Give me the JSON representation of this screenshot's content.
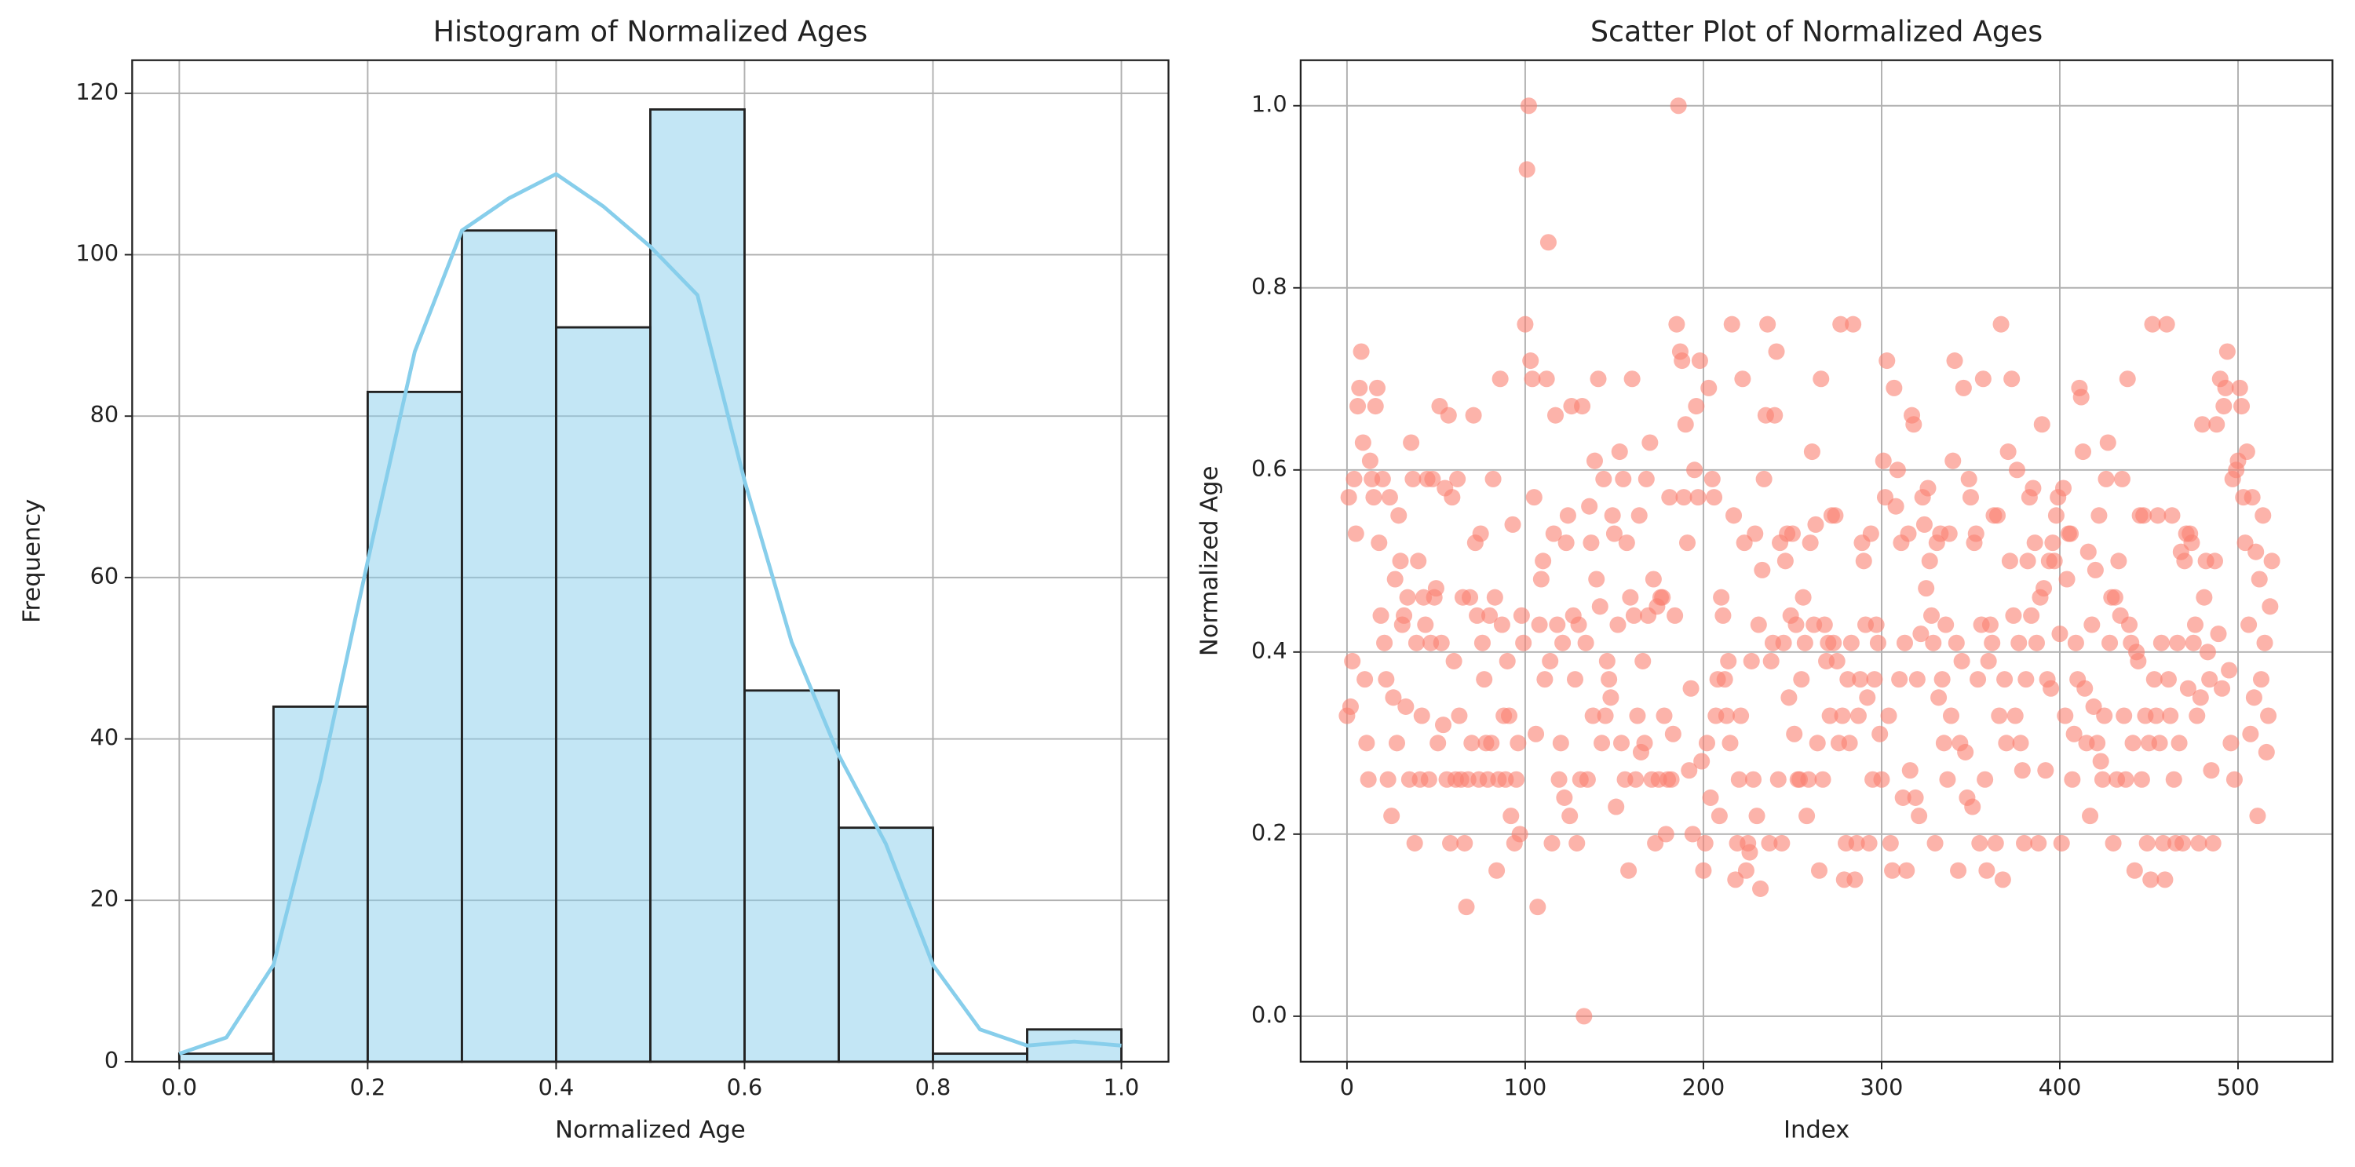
{
  "chart_data": [
    {
      "type": "histogram",
      "title": "Histogram of Normalized Ages",
      "xlabel": "Normalized Age",
      "ylabel": "Frequency",
      "bins": [
        0.0,
        0.1,
        0.2,
        0.3,
        0.4,
        0.5,
        0.6,
        0.7,
        0.8,
        0.9,
        1.0
      ],
      "values": [
        1,
        44,
        83,
        103,
        91,
        118,
        46,
        29,
        1,
        4
      ],
      "color": "#87ceeb",
      "edgecolor": "#222222",
      "kde": {
        "x": [
          0,
          0.05,
          0.1,
          0.15,
          0.2,
          0.25,
          0.3,
          0.35,
          0.4,
          0.45,
          0.5,
          0.55,
          0.6,
          0.65,
          0.7,
          0.75,
          0.8,
          0.85,
          0.9,
          0.95,
          1.0
        ],
        "values": [
          1,
          3,
          12,
          35,
          62,
          88,
          103,
          107,
          110,
          106,
          101,
          95,
          72,
          52,
          38,
          27,
          12,
          4,
          2,
          2.5,
          2
        ]
      },
      "xlim": [
        -0.05,
        1.05
      ],
      "xticks": [
        {
          "value": 0,
          "label": "0.0"
        },
        0.2,
        0.4,
        0.6,
        0.8,
        {
          "value": 1,
          "label": "1.0"
        }
      ],
      "ylim": [
        0,
        124.1
      ],
      "yticks": [
        0,
        20,
        40,
        60,
        80,
        100,
        120
      ],
      "grid": true
    },
    {
      "type": "scatter",
      "title": "Scatter Plot of Normalized Ages",
      "xlabel": "Index",
      "ylabel": "Normalized Age",
      "color": "#fa8072",
      "x": [
        0,
        1,
        2,
        3,
        4,
        5,
        6,
        7,
        8,
        9,
        10,
        11,
        12,
        13,
        14,
        15,
        16,
        17,
        18,
        19,
        20,
        21,
        22,
        23,
        24,
        25,
        26,
        27,
        28,
        29,
        30,
        31,
        32,
        33,
        34,
        35,
        36,
        37,
        38,
        39,
        40,
        41,
        42,
        43,
        44,
        45,
        46,
        47,
        48,
        49,
        50,
        51,
        52,
        53,
        54,
        55,
        56,
        57,
        58,
        59,
        60,
        61,
        62,
        63,
        64,
        65,
        66,
        67,
        68,
        69,
        70,
        71,
        72,
        73,
        74,
        75,
        76,
        77,
        78,
        79,
        80,
        81,
        82,
        83,
        84,
        85,
        86,
        87,
        88,
        89,
        90,
        91,
        92,
        93,
        94,
        95,
        96,
        97,
        98,
        99,
        100,
        101,
        102,
        103,
        104,
        105,
        106,
        107,
        108,
        109,
        110,
        111,
        112,
        113,
        114,
        115,
        116,
        117,
        118,
        119,
        120,
        121,
        122,
        123,
        124,
        125,
        126,
        127,
        128,
        129,
        130,
        131,
        132,
        133,
        134,
        135,
        136,
        137,
        138,
        139,
        140,
        141,
        142,
        143,
        144,
        145,
        146,
        147,
        148,
        149,
        150,
        151,
        152,
        153,
        154,
        155,
        156,
        157,
        158,
        159,
        160,
        161,
        162,
        163,
        164,
        165,
        166,
        167,
        168,
        169,
        170,
        171,
        172,
        173,
        174,
        175,
        176,
        177,
        178,
        179,
        180,
        181,
        182,
        183,
        184,
        185,
        186,
        187,
        188,
        189,
        190,
        191,
        192,
        193,
        194,
        195,
        196,
        197,
        198,
        199,
        200,
        201,
        202,
        203,
        204,
        205,
        206,
        207,
        208,
        209,
        210,
        211,
        212,
        213,
        214,
        215,
        216,
        217,
        218,
        219,
        220,
        221,
        222,
        223,
        224,
        225,
        226,
        227,
        228,
        229,
        230,
        231,
        232,
        233,
        234,
        235,
        236,
        237,
        238,
        239,
        240,
        241,
        242,
        243,
        244,
        245,
        246,
        247,
        248,
        249,
        250,
        251,
        252,
        253,
        254,
        255,
        256,
        257,
        258,
        259,
        260,
        261,
        262,
        263,
        264,
        265,
        266,
        267,
        268,
        269,
        270,
        271,
        272,
        273,
        274,
        275,
        276,
        277,
        278,
        279,
        280,
        281,
        282,
        283,
        284,
        285,
        286,
        287,
        288,
        289,
        290,
        291,
        292,
        293,
        294,
        295,
        296,
        297,
        298,
        299,
        300,
        301,
        302,
        303,
        304,
        305,
        306,
        307,
        308,
        309,
        310,
        311,
        312,
        313,
        314,
        315,
        316,
        317,
        318,
        319,
        320,
        321,
        322,
        323,
        324,
        325,
        326,
        327,
        328,
        329,
        330,
        331,
        332,
        333,
        334,
        335,
        336,
        337,
        338,
        339,
        340,
        341,
        342,
        343,
        344,
        345,
        346,
        347,
        348,
        349,
        350,
        351,
        352,
        353,
        354,
        355,
        356,
        357,
        358,
        359,
        360,
        361,
        362,
        363,
        364,
        365,
        366,
        367,
        368,
        369,
        370,
        371,
        372,
        373,
        374,
        375,
        376,
        377,
        378,
        379,
        380,
        381,
        382,
        383,
        384,
        385,
        386,
        387,
        388,
        389,
        390,
        391,
        392,
        393,
        394,
        395,
        396,
        397,
        398,
        399,
        400,
        401,
        402,
        403,
        404,
        405,
        406,
        407,
        408,
        409,
        410,
        411,
        412,
        413,
        414,
        415,
        416,
        417,
        418,
        419,
        420,
        421,
        422,
        423,
        424,
        425,
        426,
        427,
        428,
        429,
        430,
        431,
        432,
        433,
        434,
        435,
        436,
        437,
        438,
        439,
        440,
        441,
        442,
        443,
        444,
        445,
        446,
        447,
        448,
        449,
        450,
        451,
        452,
        453,
        454,
        455,
        456,
        457,
        458,
        459,
        460,
        461,
        462,
        463,
        464,
        465,
        466,
        467,
        468,
        469,
        470,
        471,
        472,
        473,
        474,
        475,
        476,
        477,
        478,
        479,
        480,
        481,
        482,
        483,
        484,
        485,
        486,
        487,
        488,
        489,
        490,
        491,
        492,
        493,
        494,
        495,
        496,
        497,
        498,
        499,
        500,
        501,
        502,
        503,
        504,
        505,
        506,
        507,
        508,
        509,
        510,
        511,
        512,
        513,
        514,
        515,
        516,
        517,
        518,
        519
      ],
      "values": [
        0.33,
        0.57,
        0.34,
        0.39,
        0.59,
        0.53,
        0.67,
        0.69,
        0.73,
        0.63,
        0.37,
        0.3,
        0.26,
        0.61,
        0.59,
        0.57,
        0.67,
        0.69,
        0.52,
        0.44,
        0.59,
        0.41,
        0.37,
        0.26,
        0.57,
        0.22,
        0.35,
        0.48,
        0.3,
        0.55,
        0.5,
        0.43,
        0.44,
        0.34,
        0.46,
        0.26,
        0.63,
        0.59,
        0.19,
        0.41,
        0.5,
        0.26,
        0.33,
        0.46,
        0.43,
        0.59,
        0.26,
        0.41,
        0.59,
        0.46,
        0.47,
        0.3,
        0.67,
        0.41,
        0.32,
        0.58,
        0.26,
        0.66,
        0.19,
        0.57,
        0.39,
        0.26,
        0.59,
        0.33,
        0.26,
        0.46,
        0.19,
        0.12,
        0.26,
        0.46,
        0.3,
        0.66,
        0.52,
        0.44,
        0.26,
        0.53,
        0.41,
        0.37,
        0.3,
        0.26,
        0.44,
        0.3,
        0.59,
        0.46,
        0.16,
        0.26,
        0.7,
        0.43,
        0.33,
        0.26,
        0.39,
        0.33,
        0.22,
        0.54,
        0.19,
        0.26,
        0.3,
        0.2,
        0.44,
        0.41,
        0.76,
        0.93,
        1.0,
        0.72,
        0.7,
        0.57,
        0.31,
        0.12,
        0.43,
        0.48,
        0.5,
        0.37,
        0.7,
        0.85,
        0.39,
        0.19,
        0.53,
        0.66,
        0.43,
        0.26,
        0.3,
        0.41,
        0.24,
        0.52,
        0.55,
        0.22,
        0.67,
        0.44,
        0.37,
        0.19,
        0.43,
        0.26,
        0.67,
        0.0,
        0.41,
        0.26,
        0.56,
        0.52,
        0.33,
        0.61,
        0.48,
        0.7,
        0.45,
        0.3,
        0.59,
        0.33,
        0.39,
        0.37,
        0.35,
        0.55,
        0.53,
        0.23,
        0.43,
        0.62,
        0.3,
        0.59,
        0.26,
        0.52,
        0.16,
        0.46,
        0.7,
        0.44,
        0.26,
        0.33,
        0.55,
        0.29,
        0.39,
        0.3,
        0.59,
        0.44,
        0.63,
        0.26,
        0.48,
        0.19,
        0.45,
        0.26,
        0.46,
        0.46,
        0.33,
        0.2,
        0.26,
        0.57,
        0.26,
        0.31,
        0.44,
        0.76,
        1.0,
        0.73,
        0.72,
        0.57,
        0.65,
        0.52,
        0.27,
        0.36,
        0.2,
        0.6,
        0.67,
        0.57,
        0.72,
        0.28,
        0.16,
        0.19,
        0.3,
        0.69,
        0.24,
        0.59,
        0.57,
        0.33,
        0.37,
        0.22,
        0.46,
        0.44,
        0.37,
        0.33,
        0.39,
        0.3,
        0.76,
        0.55,
        0.15,
        0.19,
        0.26,
        0.33,
        0.7,
        0.52,
        0.16,
        0.19,
        0.18,
        0.39,
        0.26,
        0.53,
        0.22,
        0.43,
        0.14,
        0.49,
        0.59,
        0.66,
        0.76,
        0.19,
        0.39,
        0.41,
        0.66,
        0.73,
        0.26,
        0.52,
        0.19,
        0.41,
        0.5,
        0.53,
        0.35,
        0.44,
        0.53,
        0.31,
        0.43,
        0.26,
        0.26,
        0.37,
        0.46,
        0.41,
        0.22,
        0.26,
        0.52,
        0.62,
        0.43,
        0.54,
        0.3,
        0.16,
        0.7,
        0.26,
        0.43,
        0.39,
        0.41,
        0.33,
        0.55,
        0.41,
        0.55,
        0.39,
        0.3,
        0.76,
        0.33,
        0.15,
        0.19,
        0.37,
        0.3,
        0.41,
        0.76,
        0.15,
        0.19,
        0.33,
        0.37,
        0.52,
        0.5,
        0.43,
        0.35,
        0.19,
        0.53,
        0.26,
        0.37,
        0.43,
        0.41,
        0.31,
        0.26,
        0.61,
        0.57,
        0.72,
        0.33,
        0.19,
        0.16,
        0.69,
        0.56,
        0.6,
        0.37,
        0.52,
        0.24,
        0.41,
        0.16,
        0.53,
        0.27,
        0.66,
        0.65,
        0.24,
        0.37,
        0.22,
        0.42,
        0.57,
        0.54,
        0.47,
        0.58,
        0.5,
        0.44,
        0.41,
        0.19,
        0.52,
        0.35,
        0.53,
        0.37,
        0.3,
        0.43,
        0.26,
        0.53,
        0.33,
        0.61,
        0.72,
        0.41,
        0.16,
        0.3,
        0.39,
        0.69,
        0.29,
        0.24,
        0.59,
        0.57,
        0.23,
        0.52,
        0.53,
        0.37,
        0.19,
        0.43,
        0.7,
        0.26,
        0.16,
        0.39,
        0.43,
        0.41,
        0.55,
        0.19,
        0.55,
        0.33,
        0.76,
        0.15,
        0.37,
        0.3,
        0.62,
        0.5,
        0.7,
        0.44,
        0.33,
        0.6,
        0.41,
        0.3,
        0.27,
        0.19,
        0.37,
        0.5,
        0.57,
        0.44,
        0.58,
        0.52,
        0.41,
        0.19,
        0.46,
        0.65,
        0.47,
        0.27,
        0.37,
        0.5,
        0.36,
        0.52,
        0.5,
        0.55,
        0.57,
        0.42,
        0.19,
        0.58,
        0.33,
        0.48,
        0.53,
        0.53,
        0.26,
        0.31,
        0.41,
        0.37,
        0.69,
        0.68,
        0.62,
        0.36,
        0.3,
        0.51,
        0.22,
        0.43,
        0.34,
        0.49,
        0.3,
        0.55,
        0.28,
        0.26,
        0.33,
        0.59,
        0.63,
        0.41,
        0.46,
        0.19,
        0.46,
        0.26,
        0.5,
        0.44,
        0.59,
        0.33,
        0.26,
        0.7,
        0.43,
        0.41,
        0.3,
        0.16,
        0.4,
        0.39,
        0.55,
        0.26,
        0.55,
        0.33,
        0.19,
        0.3,
        0.15,
        0.76,
        0.37,
        0.33,
        0.55,
        0.3,
        0.41,
        0.19,
        0.15,
        0.76,
        0.37,
        0.33,
        0.55,
        0.26,
        0.19,
        0.41,
        0.3,
        0.51,
        0.19,
        0.5,
        0.53,
        0.36,
        0.53,
        0.52,
        0.41,
        0.43,
        0.33,
        0.19,
        0.35,
        0.65,
        0.46,
        0.5,
        0.4,
        0.37,
        0.27,
        0.19,
        0.5,
        0.65,
        0.42,
        0.7,
        0.36,
        0.67,
        0.69,
        0.73,
        0.38,
        0.3,
        0.59,
        0.26,
        0.6,
        0.61,
        0.69,
        0.67,
        0.57,
        0.52,
        0.62,
        0.43,
        0.31,
        0.57,
        0.35,
        0.51,
        0.22,
        0.48,
        0.37,
        0.55,
        0.41,
        0.29,
        0.33,
        0.45,
        0.5
      ],
      "xlim": [
        -26,
        553
      ],
      "xticks": [
        0,
        100,
        200,
        300,
        400,
        500
      ],
      "ylim": [
        -0.05,
        1.05
      ],
      "yticks": [
        {
          "value": 0,
          "label": "0.0"
        },
        0.2,
        0.4,
        0.6,
        0.8,
        {
          "value": 1,
          "label": "1.0"
        }
      ],
      "grid": true
    }
  ]
}
